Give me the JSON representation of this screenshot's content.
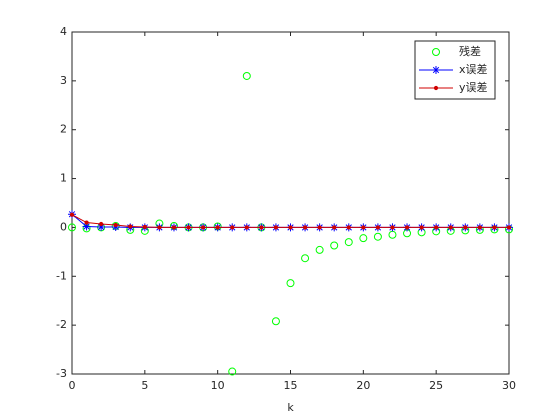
{
  "chart_data": {
    "type": "line",
    "xlabel": "k",
    "x": [
      0,
      1,
      2,
      3,
      4,
      5,
      6,
      7,
      8,
      9,
      10,
      11,
      12,
      13,
      14,
      15,
      16,
      17,
      18,
      19,
      20,
      21,
      22,
      23,
      24,
      25,
      26,
      27,
      28,
      29,
      30
    ],
    "xlim": [
      0,
      30
    ],
    "xticks": [
      0,
      5,
      10,
      15,
      20,
      25,
      30
    ],
    "ylim": [
      -3,
      4
    ],
    "yticks": [
      -3,
      -2,
      -1,
      0,
      1,
      2,
      3,
      4
    ],
    "grid": false,
    "legend": "northeast",
    "series": [
      {
        "name": "残差",
        "color": "#00ff00",
        "marker": "o",
        "linestyle": "none",
        "values": [
          0,
          -0.02,
          0,
          0.03,
          -0.05,
          -0.07,
          0.08,
          0.03,
          0,
          0,
          0.02,
          -2.95,
          3.1,
          0,
          -1.92,
          -1.14,
          -0.63,
          -0.46,
          -0.37,
          -0.3,
          -0.22,
          -0.19,
          -0.15,
          -0.12,
          -0.1,
          -0.08,
          -0.07,
          -0.06,
          -0.05,
          -0.04,
          -0.04
        ]
      },
      {
        "name": "x误差",
        "color": "#0000ff",
        "marker": "*",
        "linestyle": "-",
        "values": [
          0.27,
          0.02,
          0.01,
          0.01,
          0,
          0,
          0,
          0,
          0,
          0,
          0,
          0,
          0,
          0,
          0,
          0,
          0,
          0,
          0,
          0,
          0,
          0,
          0,
          0,
          0,
          0,
          0,
          0,
          0,
          0,
          0
        ]
      },
      {
        "name": "y误差",
        "color": "#d00000",
        "marker": ".",
        "linestyle": "-",
        "values": [
          0.26,
          0.1,
          0.07,
          0.05,
          0.02,
          0.01,
          0,
          0,
          0,
          0,
          0,
          0,
          0,
          0,
          0,
          0,
          0,
          0,
          0,
          0,
          0,
          0,
          0,
          0,
          0,
          0,
          0,
          0,
          0,
          0,
          0
        ]
      }
    ]
  }
}
